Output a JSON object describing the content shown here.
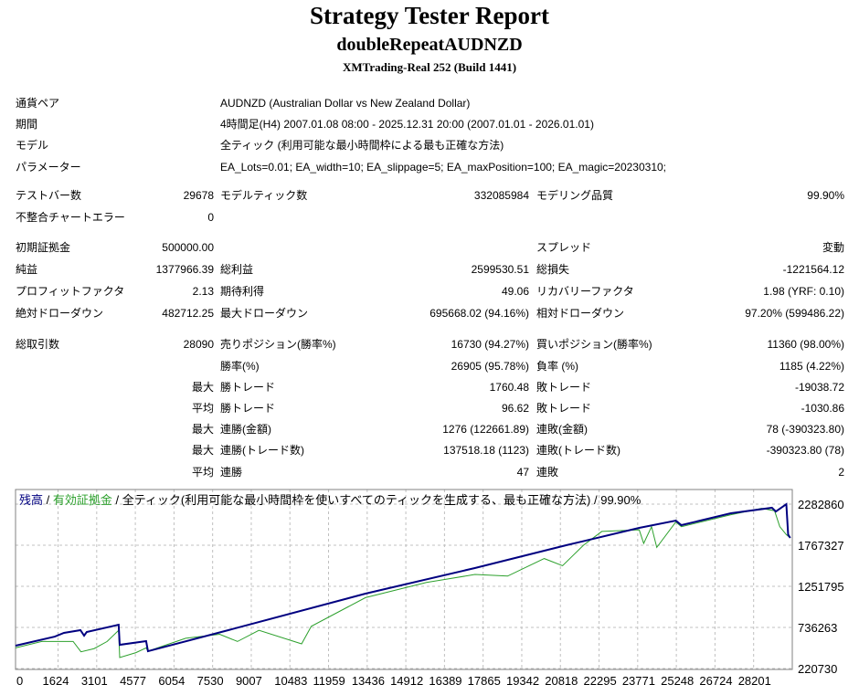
{
  "header": {
    "title": "Strategy Tester Report",
    "subtitle": "doubleRepeatAUDNZD",
    "server": "XMTrading-Real 252 (Build 1441)"
  },
  "info": [
    {
      "label": "通貨ペア",
      "value": "AUDNZD (Australian Dollar vs New Zealand Dollar)"
    },
    {
      "label": "期間",
      "value": "4時間足(H4) 2007.01.08 08:00 - 2025.12.31 20:00 (2007.01.01 - 2026.01.01)"
    },
    {
      "label": "モデル",
      "value": "全ティック (利用可能な最小時間枠による最も正確な方法)"
    },
    {
      "label": "パラメーター",
      "value": "EA_Lots=0.01; EA_width=10; EA_slippage=5; EA_maxPosition=100; EA_magic=20230310;"
    }
  ],
  "stats": [
    {
      "l1": "テストバー数",
      "v1": "29678",
      "l2": "モデルティック数",
      "v2": "332085984",
      "l3": "モデリング品質",
      "v3": "99.90%"
    },
    {
      "l1": "不整合チャートエラー",
      "v1": "0"
    },
    {
      "l1": "初期証拠金",
      "v1": "500000.00",
      "l3": "スプレッド",
      "v3": "変動"
    },
    {
      "l1": "純益",
      "v1": "1377966.39",
      "l2": "総利益",
      "v2": "2599530.51",
      "l3": "総損失",
      "v3": "-1221564.12"
    },
    {
      "l1": "プロフィットファクタ",
      "v1": "2.13",
      "l2": "期待利得",
      "v2": "49.06",
      "l3": "リカバリーファクタ",
      "v3": "1.98 (YRF: 0.10)"
    },
    {
      "l1": "絶対ドローダウン",
      "v1": "482712.25",
      "l2": "最大ドローダウン",
      "v2": "695668.02 (94.16%)",
      "l3": "相対ドローダウン",
      "v3": "97.20% (599486.22)"
    },
    {
      "l1": "総取引数",
      "v1": "28090",
      "l2": "売りポジション(勝率%)",
      "v2": "16730 (94.27%)",
      "l3": "買いポジション(勝率%)",
      "v3": "11360 (98.00%)"
    },
    {
      "l2": "勝率(%)",
      "v2": "26905 (95.78%)",
      "l3": "負率 (%)",
      "v3": "1185 (4.22%)"
    },
    {
      "pre": "最大",
      "l2": "勝トレード",
      "v2": "1760.48",
      "l3": "敗トレード",
      "v3": "-19038.72"
    },
    {
      "pre": "平均",
      "l2": "勝トレード",
      "v2": "96.62",
      "l3": "敗トレード",
      "v3": "-1030.86"
    },
    {
      "pre": "最大",
      "l2": "連勝(金額)",
      "v2": "1276 (122661.89)",
      "l3": "連敗(金額)",
      "v3": "78 (-390323.80)"
    },
    {
      "pre": "最大",
      "l2": "連勝(トレード数)",
      "v2": "137518.18 (1123)",
      "l3": "連敗(トレード数)",
      "v3": "-390323.80 (78)"
    },
    {
      "pre": "平均",
      "l2": "連勝",
      "v2": "47",
      "l3": "連敗",
      "v3": "2"
    }
  ],
  "chart_data": {
    "type": "line",
    "legend": {
      "balance": "残高",
      "equity": "有効証拠金",
      "sep": " / ",
      "rest": " / 全ティック(利用可能な最小時間枠を使いすべてのティックを生成する、最も正確な方法) / 99.90%"
    },
    "xlim": [
      0,
      29678
    ],
    "ylim": [
      220730,
      2466000
    ],
    "x_ticks": [
      0,
      1624,
      3101,
      4577,
      6054,
      7530,
      9007,
      10483,
      11959,
      13436,
      14912,
      16389,
      17865,
      19342,
      20818,
      22295,
      23771,
      25248,
      26724,
      28201
    ],
    "y_ticks": [
      2282860,
      1767327,
      1251795,
      736263,
      220730
    ],
    "grid": true,
    "colors": {
      "balance": "#000080",
      "equity": "#2ca02c",
      "grid": "#c0c0c0"
    },
    "series": [
      {
        "name": "残高",
        "x": [
          0,
          1500,
          1850,
          2480,
          2620,
          2720,
          3940,
          3980,
          4990,
          5060,
          8130,
          13370,
          17550,
          21040,
          23830,
          25230,
          25440,
          27330,
          28900,
          29050,
          29450,
          29520,
          29600
        ],
        "values": [
          507000,
          621000,
          668000,
          702000,
          633000,
          679000,
          770000,
          518000,
          564000,
          438000,
          702000,
          1160000,
          1481000,
          1767000,
          1985000,
          2076000,
          2019000,
          2168000,
          2237000,
          2190000,
          2282000,
          1900000,
          1859000
        ]
      },
      {
        "name": "有効証拠金",
        "x": [
          0,
          1000,
          2200,
          2500,
          3000,
          3500,
          3940,
          3980,
          4600,
          4990,
          5060,
          6500,
          7800,
          8480,
          9300,
          10930,
          11300,
          13370,
          15700,
          17550,
          18800,
          20200,
          20900,
          21700,
          22400,
          23830,
          24000,
          24300,
          24500,
          25230,
          25440,
          27330,
          28500,
          29000,
          29200,
          29450,
          29600
        ],
        "values": [
          480000,
          560000,
          560000,
          430000,
          470000,
          560000,
          700000,
          358000,
          420000,
          480000,
          438000,
          600000,
          650000,
          560000,
          700000,
          530000,
          750000,
          1110000,
          1300000,
          1400000,
          1380000,
          1600000,
          1510000,
          1767000,
          1940000,
          1960000,
          1790000,
          2000000,
          1740000,
          2060000,
          2000000,
          2150000,
          2230000,
          2200000,
          2000000,
          1900000,
          1859000
        ]
      }
    ]
  }
}
